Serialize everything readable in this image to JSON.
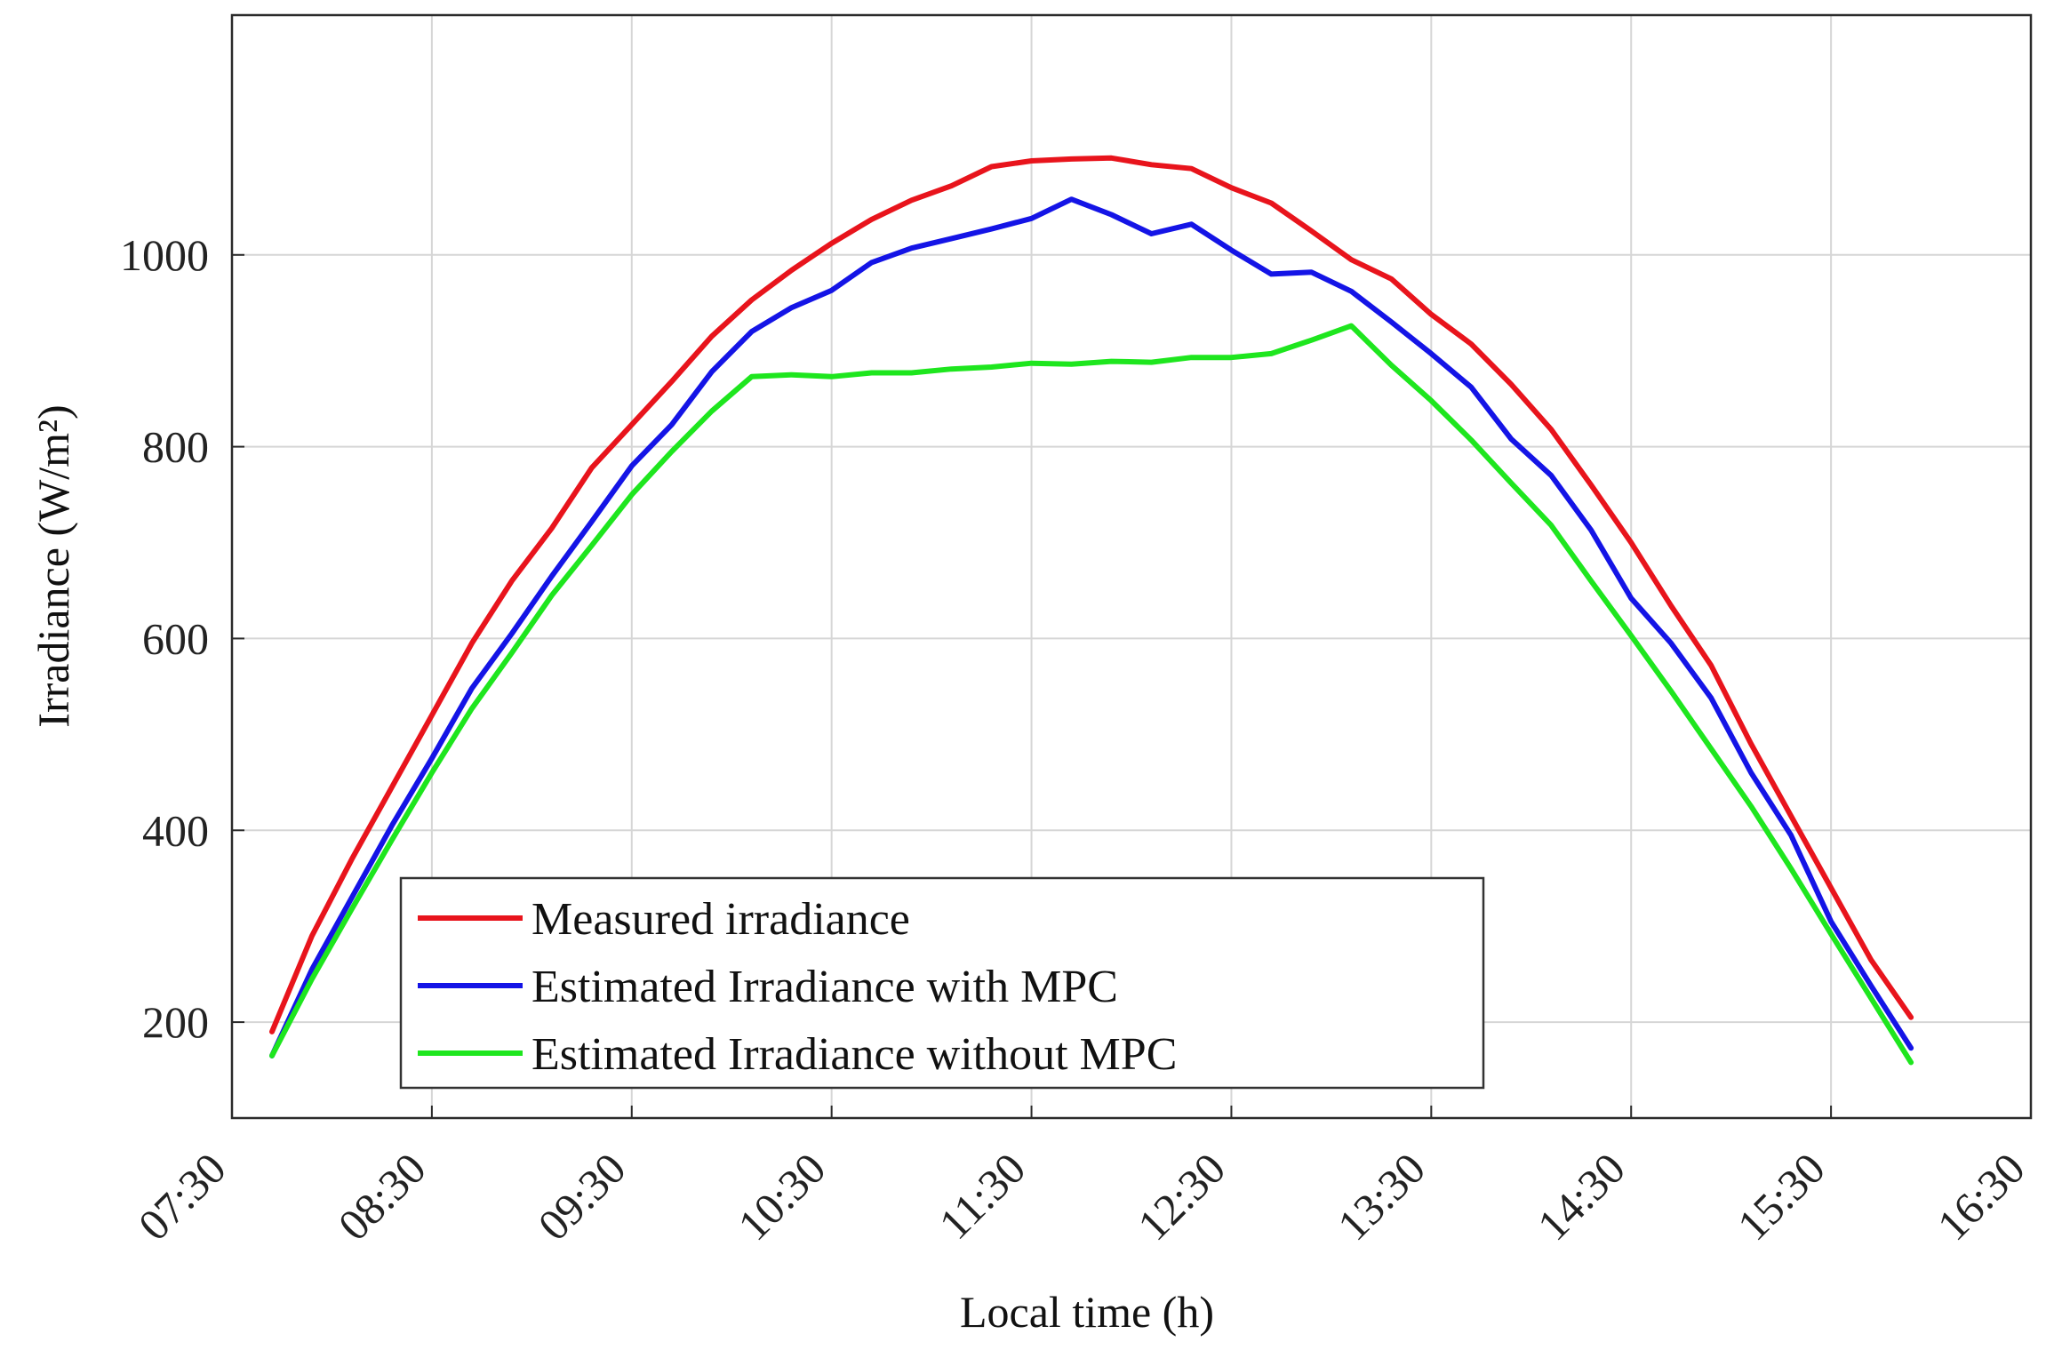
{
  "chart_data": {
    "type": "line",
    "title": "",
    "xlabel": "Local time (h)",
    "ylabel": "Irradiance (W/m²)",
    "x_range_hours": [
      7.5,
      16.5
    ],
    "ylim": [
      100,
      1250
    ],
    "grid": true,
    "legend_placement": "bottom-left",
    "x_ticks": [
      {
        "value": 7.5,
        "label": "07:30"
      },
      {
        "value": 8.5,
        "label": "08:30"
      },
      {
        "value": 9.5,
        "label": "09:30"
      },
      {
        "value": 10.5,
        "label": "10:30"
      },
      {
        "value": 11.5,
        "label": "11:30"
      },
      {
        "value": 12.5,
        "label": "12:30"
      },
      {
        "value": 13.5,
        "label": "13:30"
      },
      {
        "value": 14.5,
        "label": "14:30"
      },
      {
        "value": 15.5,
        "label": "15:30"
      },
      {
        "value": 16.5,
        "label": "16:30"
      }
    ],
    "y_ticks": [
      {
        "value": 200,
        "label": "200"
      },
      {
        "value": 400,
        "label": "400"
      },
      {
        "value": 600,
        "label": "600"
      },
      {
        "value": 800,
        "label": "800"
      },
      {
        "value": 1000,
        "label": "1000"
      }
    ],
    "series": [
      {
        "name": "Measured irradiance",
        "color": "#e8141c",
        "x": [
          7.7,
          7.9,
          8.1,
          8.3,
          8.5,
          8.7,
          8.9,
          9.1,
          9.3,
          9.5,
          9.7,
          9.9,
          10.1,
          10.3,
          10.5,
          10.7,
          10.9,
          11.1,
          11.3,
          11.5,
          11.7,
          11.9,
          12.1,
          12.3,
          12.5,
          12.7,
          12.9,
          13.1,
          13.3,
          13.5,
          13.7,
          13.9,
          14.1,
          14.3,
          14.5,
          14.7,
          14.9,
          15.1,
          15.3,
          15.5,
          15.7,
          15.9
        ],
        "values": [
          190,
          290,
          370,
          445,
          520,
          595,
          660,
          715,
          778,
          823,
          868,
          915,
          953,
          984,
          1012,
          1037,
          1057,
          1072,
          1092,
          1098,
          1100,
          1101,
          1094,
          1090,
          1070,
          1054,
          1025,
          995,
          975,
          938,
          907,
          865,
          818,
          760,
          700,
          634,
          572,
          490,
          415,
          340,
          265,
          205
        ]
      },
      {
        "name": "Estimated Irradiance with MPC",
        "color": "#1414e6",
        "x": [
          7.7,
          7.9,
          8.1,
          8.3,
          8.5,
          8.7,
          8.9,
          9.1,
          9.3,
          9.5,
          9.7,
          9.9,
          10.1,
          10.3,
          10.5,
          10.7,
          10.9,
          11.1,
          11.3,
          11.5,
          11.7,
          11.9,
          12.1,
          12.3,
          12.5,
          12.7,
          12.9,
          13.1,
          13.3,
          13.5,
          13.7,
          13.9,
          14.1,
          14.3,
          14.5,
          14.7,
          14.9,
          15.1,
          15.3,
          15.5,
          15.7,
          15.9
        ],
        "values": [
          165,
          255,
          330,
          405,
          475,
          548,
          605,
          665,
          722,
          780,
          823,
          878,
          920,
          945,
          963,
          992,
          1007,
          1017,
          1027,
          1038,
          1058,
          1042,
          1022,
          1032,
          1005,
          980,
          982,
          962,
          930,
          897,
          862,
          808,
          770,
          713,
          642,
          595,
          538,
          460,
          395,
          305,
          238,
          173
        ]
      },
      {
        "name": "Estimated Irradiance without MPC",
        "color": "#1ee61e",
        "x": [
          7.7,
          7.9,
          8.1,
          8.3,
          8.5,
          8.7,
          8.9,
          9.1,
          9.3,
          9.5,
          9.7,
          9.9,
          10.1,
          10.3,
          10.5,
          10.7,
          10.9,
          11.1,
          11.3,
          11.5,
          11.7,
          11.9,
          12.1,
          12.3,
          12.5,
          12.7,
          12.9,
          13.1,
          13.3,
          13.5,
          13.7,
          13.9,
          14.1,
          14.3,
          14.5,
          14.7,
          14.9,
          15.1,
          15.3,
          15.5,
          15.7,
          15.9
        ],
        "values": [
          165,
          245,
          318,
          390,
          460,
          527,
          585,
          645,
          697,
          750,
          795,
          837,
          873,
          875,
          873,
          877,
          877,
          881,
          883,
          887,
          886,
          889,
          888,
          893,
          893,
          897,
          911,
          926,
          885,
          848,
          807,
          762,
          718,
          660,
          603,
          545,
          485,
          425,
          360,
          292,
          225,
          158
        ]
      }
    ]
  }
}
